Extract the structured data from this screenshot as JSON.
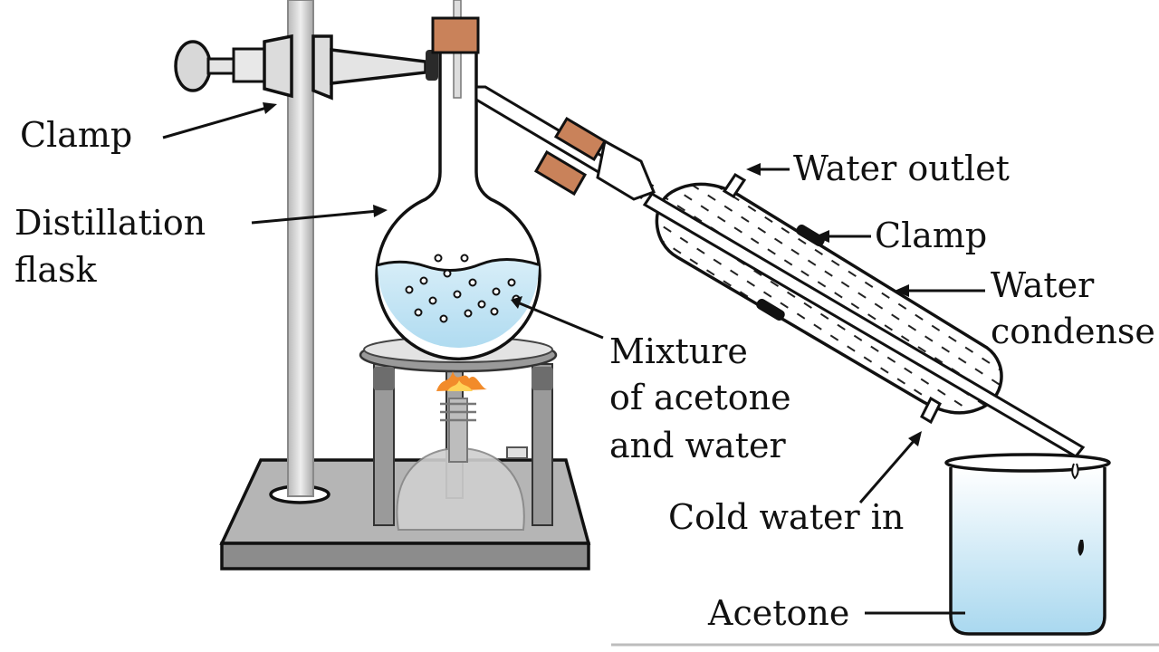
{
  "labels": {
    "clamp_left": "Clamp",
    "distillation_line1": "Distillation",
    "distillation_line2": "flask",
    "mixture_line1": "Mixture",
    "mixture_line2": "of acetone",
    "mixture_line3": "and water",
    "water_outlet": "Water outlet",
    "clamp_right": "Clamp",
    "condenser_line1": "Water",
    "condenser_line2": "condense",
    "cold_water_in": "Cold water in",
    "acetone": "Acetone"
  },
  "colors": {
    "ink": "#111111",
    "steel": "#c9c9c9",
    "steel_dark": "#8d8d8d",
    "cork": "#c9825a",
    "liquid": "#bfe3f3",
    "flame": "#f28b2a"
  }
}
